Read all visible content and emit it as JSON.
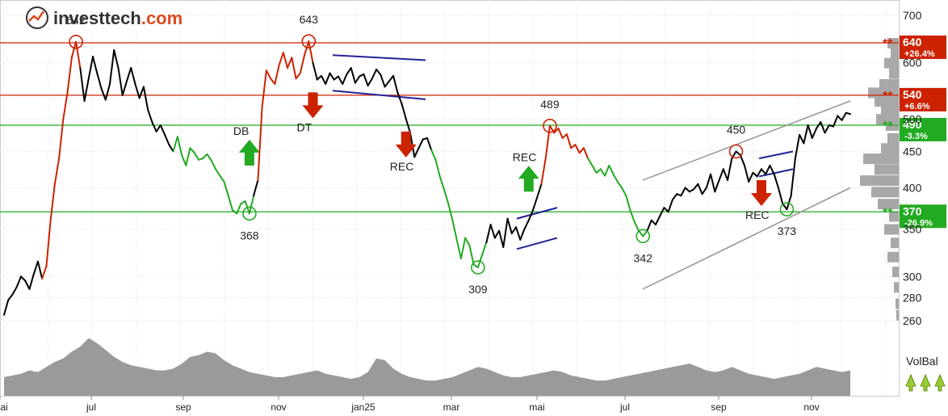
{
  "brand": {
    "name_part1": "investtech",
    "name_part2": ".com",
    "accent": "#e0491d"
  },
  "chart_data": {
    "type": "line",
    "y_scale": "log",
    "ylim": [
      250,
      720
    ],
    "y_ticks": [
      260,
      280,
      300,
      350,
      400,
      450,
      500,
      600,
      700
    ],
    "x_ticks": [
      "mai",
      "jul",
      "sep",
      "nov",
      "jan25",
      "mar",
      "mai",
      "jul",
      "sep",
      "nov"
    ],
    "price_points": [
      [
        0,
        265
      ],
      [
        1,
        278
      ],
      [
        2,
        283
      ],
      [
        3,
        290
      ],
      [
        4,
        300
      ],
      [
        5,
        296
      ],
      [
        6,
        288
      ],
      [
        7,
        302
      ],
      [
        8,
        315
      ],
      [
        9,
        298
      ],
      [
        10,
        310
      ],
      [
        11,
        360
      ],
      [
        12,
        405
      ],
      [
        13,
        440
      ],
      [
        14,
        500
      ],
      [
        15,
        545
      ],
      [
        16,
        610
      ],
      [
        17,
        642
      ],
      [
        18,
        590
      ],
      [
        19,
        530
      ],
      [
        20,
        570
      ],
      [
        21,
        612
      ],
      [
        22,
        580
      ],
      [
        23,
        552
      ],
      [
        24,
        532
      ],
      [
        25,
        560
      ],
      [
        26,
        625
      ],
      [
        27,
        590
      ],
      [
        28,
        540
      ],
      [
        29,
        565
      ],
      [
        30,
        590
      ],
      [
        31,
        560
      ],
      [
        32,
        535
      ],
      [
        33,
        555
      ],
      [
        34,
        515
      ],
      [
        35,
        495
      ],
      [
        36,
        480
      ],
      [
        37,
        490
      ],
      [
        38,
        475
      ],
      [
        39,
        460
      ],
      [
        40,
        450
      ],
      [
        41,
        472
      ],
      [
        42,
        445
      ],
      [
        43,
        430
      ],
      [
        44,
        455
      ],
      [
        45,
        448
      ],
      [
        46,
        438
      ],
      [
        47,
        440
      ],
      [
        48,
        446
      ],
      [
        49,
        437
      ],
      [
        50,
        425
      ],
      [
        51,
        416
      ],
      [
        52,
        408
      ],
      [
        53,
        390
      ],
      [
        54,
        372
      ],
      [
        55,
        368
      ],
      [
        56,
        380
      ],
      [
        57,
        383
      ],
      [
        58,
        368
      ],
      [
        59,
        390
      ],
      [
        60,
        410
      ],
      [
        61,
        520
      ],
      [
        62,
        585
      ],
      [
        63,
        570
      ],
      [
        64,
        560
      ],
      [
        65,
        595
      ],
      [
        66,
        620
      ],
      [
        67,
        590
      ],
      [
        68,
        610
      ],
      [
        69,
        570
      ],
      [
        70,
        580
      ],
      [
        71,
        615
      ],
      [
        72,
        643
      ],
      [
        73,
        600
      ],
      [
        74,
        568
      ],
      [
        75,
        575
      ],
      [
        76,
        560
      ],
      [
        77,
        580
      ],
      [
        78,
        568
      ],
      [
        79,
        574
      ],
      [
        80,
        560
      ],
      [
        81,
        578
      ],
      [
        82,
        590
      ],
      [
        83,
        562
      ],
      [
        84,
        574
      ],
      [
        85,
        578
      ],
      [
        86,
        557
      ],
      [
        87,
        570
      ],
      [
        88,
        587
      ],
      [
        89,
        577
      ],
      [
        90,
        555
      ],
      [
        91,
        565
      ],
      [
        92,
        575
      ],
      [
        93,
        545
      ],
      [
        94,
        525
      ],
      [
        95,
        500
      ],
      [
        96,
        478
      ],
      [
        97,
        442
      ],
      [
        98,
        455
      ],
      [
        99,
        468
      ],
      [
        100,
        470
      ],
      [
        101,
        452
      ],
      [
        102,
        438
      ],
      [
        103,
        415
      ],
      [
        104,
        398
      ],
      [
        105,
        380
      ],
      [
        106,
        360
      ],
      [
        107,
        338
      ],
      [
        108,
        318
      ],
      [
        109,
        340
      ],
      [
        110,
        332
      ],
      [
        111,
        312
      ],
      [
        112,
        309
      ],
      [
        113,
        322
      ],
      [
        114,
        335
      ],
      [
        115,
        355
      ],
      [
        116,
        340
      ],
      [
        117,
        348
      ],
      [
        118,
        330
      ],
      [
        119,
        362
      ],
      [
        120,
        345
      ],
      [
        121,
        352
      ],
      [
        122,
        338
      ],
      [
        123,
        350
      ],
      [
        124,
        360
      ],
      [
        125,
        372
      ],
      [
        126,
        388
      ],
      [
        127,
        405
      ],
      [
        128,
        440
      ],
      [
        129,
        489
      ],
      [
        130,
        478
      ],
      [
        131,
        485
      ],
      [
        132,
        470
      ],
      [
        133,
        476
      ],
      [
        134,
        455
      ],
      [
        135,
        460
      ],
      [
        136,
        448
      ],
      [
        137,
        455
      ],
      [
        138,
        440
      ],
      [
        139,
        430
      ],
      [
        140,
        420
      ],
      [
        141,
        425
      ],
      [
        142,
        416
      ],
      [
        143,
        430
      ],
      [
        144,
        418
      ],
      [
        145,
        408
      ],
      [
        146,
        400
      ],
      [
        147,
        390
      ],
      [
        148,
        372
      ],
      [
        149,
        358
      ],
      [
        150,
        348
      ],
      [
        151,
        342
      ],
      [
        152,
        348
      ],
      [
        153,
        360
      ],
      [
        154,
        355
      ],
      [
        155,
        365
      ],
      [
        156,
        375
      ],
      [
        157,
        370
      ],
      [
        158,
        385
      ],
      [
        159,
        392
      ],
      [
        160,
        390
      ],
      [
        161,
        400
      ],
      [
        162,
        395
      ],
      [
        163,
        398
      ],
      [
        164,
        405
      ],
      [
        165,
        392
      ],
      [
        166,
        400
      ],
      [
        167,
        418
      ],
      [
        168,
        395
      ],
      [
        169,
        410
      ],
      [
        170,
        425
      ],
      [
        171,
        410
      ],
      [
        172,
        440
      ],
      [
        173,
        450
      ],
      [
        174,
        445
      ],
      [
        175,
        430
      ],
      [
        176,
        408
      ],
      [
        177,
        420
      ],
      [
        178,
        415
      ],
      [
        179,
        425
      ],
      [
        180,
        418
      ],
      [
        181,
        430
      ],
      [
        182,
        418
      ],
      [
        183,
        400
      ],
      [
        184,
        380
      ],
      [
        185,
        373
      ],
      [
        186,
        390
      ],
      [
        187,
        440
      ],
      [
        188,
        475
      ],
      [
        189,
        462
      ],
      [
        190,
        490
      ],
      [
        191,
        470
      ],
      [
        192,
        485
      ],
      [
        193,
        495
      ],
      [
        194,
        478
      ],
      [
        195,
        490
      ],
      [
        196,
        488
      ],
      [
        197,
        505
      ],
      [
        198,
        498
      ],
      [
        199,
        510
      ],
      [
        200,
        508
      ]
    ],
    "volume_profile": [
      22,
      24,
      26,
      30,
      28,
      34,
      40,
      44,
      52,
      58,
      68,
      62,
      54,
      46,
      40,
      36,
      34,
      32,
      30,
      30,
      32,
      38,
      46,
      48,
      52,
      50,
      42,
      36,
      32,
      28,
      26,
      24,
      22,
      22,
      24,
      26,
      28,
      30,
      26,
      24,
      22,
      20,
      22,
      28,
      44,
      42,
      32,
      26,
      22,
      20,
      18,
      18,
      20,
      22,
      26,
      30,
      34,
      32,
      28,
      24,
      22,
      22,
      24,
      26,
      28,
      30,
      28,
      24,
      22,
      20,
      18,
      18,
      20,
      22,
      24,
      26,
      28,
      30,
      32,
      34,
      36,
      38,
      34,
      30,
      28,
      30,
      34,
      30,
      26,
      24,
      22,
      20,
      22,
      24,
      26,
      30,
      34,
      32,
      30,
      28,
      30
    ],
    "levels": [
      {
        "value": 640,
        "label": "640",
        "change": "+26.4%",
        "color": "#cc2200"
      },
      {
        "value": 540,
        "label": "540",
        "change": "+6.6%",
        "color": "#cc2200"
      },
      {
        "value": 490,
        "label": "490",
        "change": "-3.3%",
        "color": "#22aa22"
      },
      {
        "value": 370,
        "label": "370",
        "change": "-26.9%",
        "color": "#22aa22"
      }
    ],
    "annotations": {
      "peak_labels": [
        {
          "text": "642",
          "x": 17,
          "y": 642
        },
        {
          "text": "643",
          "x": 72,
          "y": 643
        },
        {
          "text": "489",
          "x": 129,
          "y": 489
        },
        {
          "text": "450",
          "x": 173,
          "y": 450
        }
      ],
      "trough_labels": [
        {
          "text": "368",
          "x": 58,
          "y": 368
        },
        {
          "text": "309",
          "x": 112,
          "y": 309
        },
        {
          "text": "342",
          "x": 151,
          "y": 342
        },
        {
          "text": "373",
          "x": 185,
          "y": 373
        }
      ],
      "patterns": [
        {
          "text": "DB",
          "direction": "up",
          "x": 58,
          "y": 430
        },
        {
          "text": "DT",
          "direction": "down",
          "x": 73,
          "y": 545
        },
        {
          "text": "REC",
          "direction": "down",
          "x": 95,
          "y": 480
        },
        {
          "text": "REC",
          "direction": "up",
          "x": 124,
          "y": 395
        },
        {
          "text": "REC",
          "direction": "down",
          "x": 179,
          "y": 410
        }
      ]
    },
    "volbal_label": "VolBal",
    "colors": {
      "price": "#000000",
      "up_segment": "#cc2200",
      "down_segment": "#22aa22",
      "volume": "#9a9a9a",
      "profile": "#a8a8a8",
      "channel": "#999999",
      "rectangle": "#222299"
    }
  }
}
